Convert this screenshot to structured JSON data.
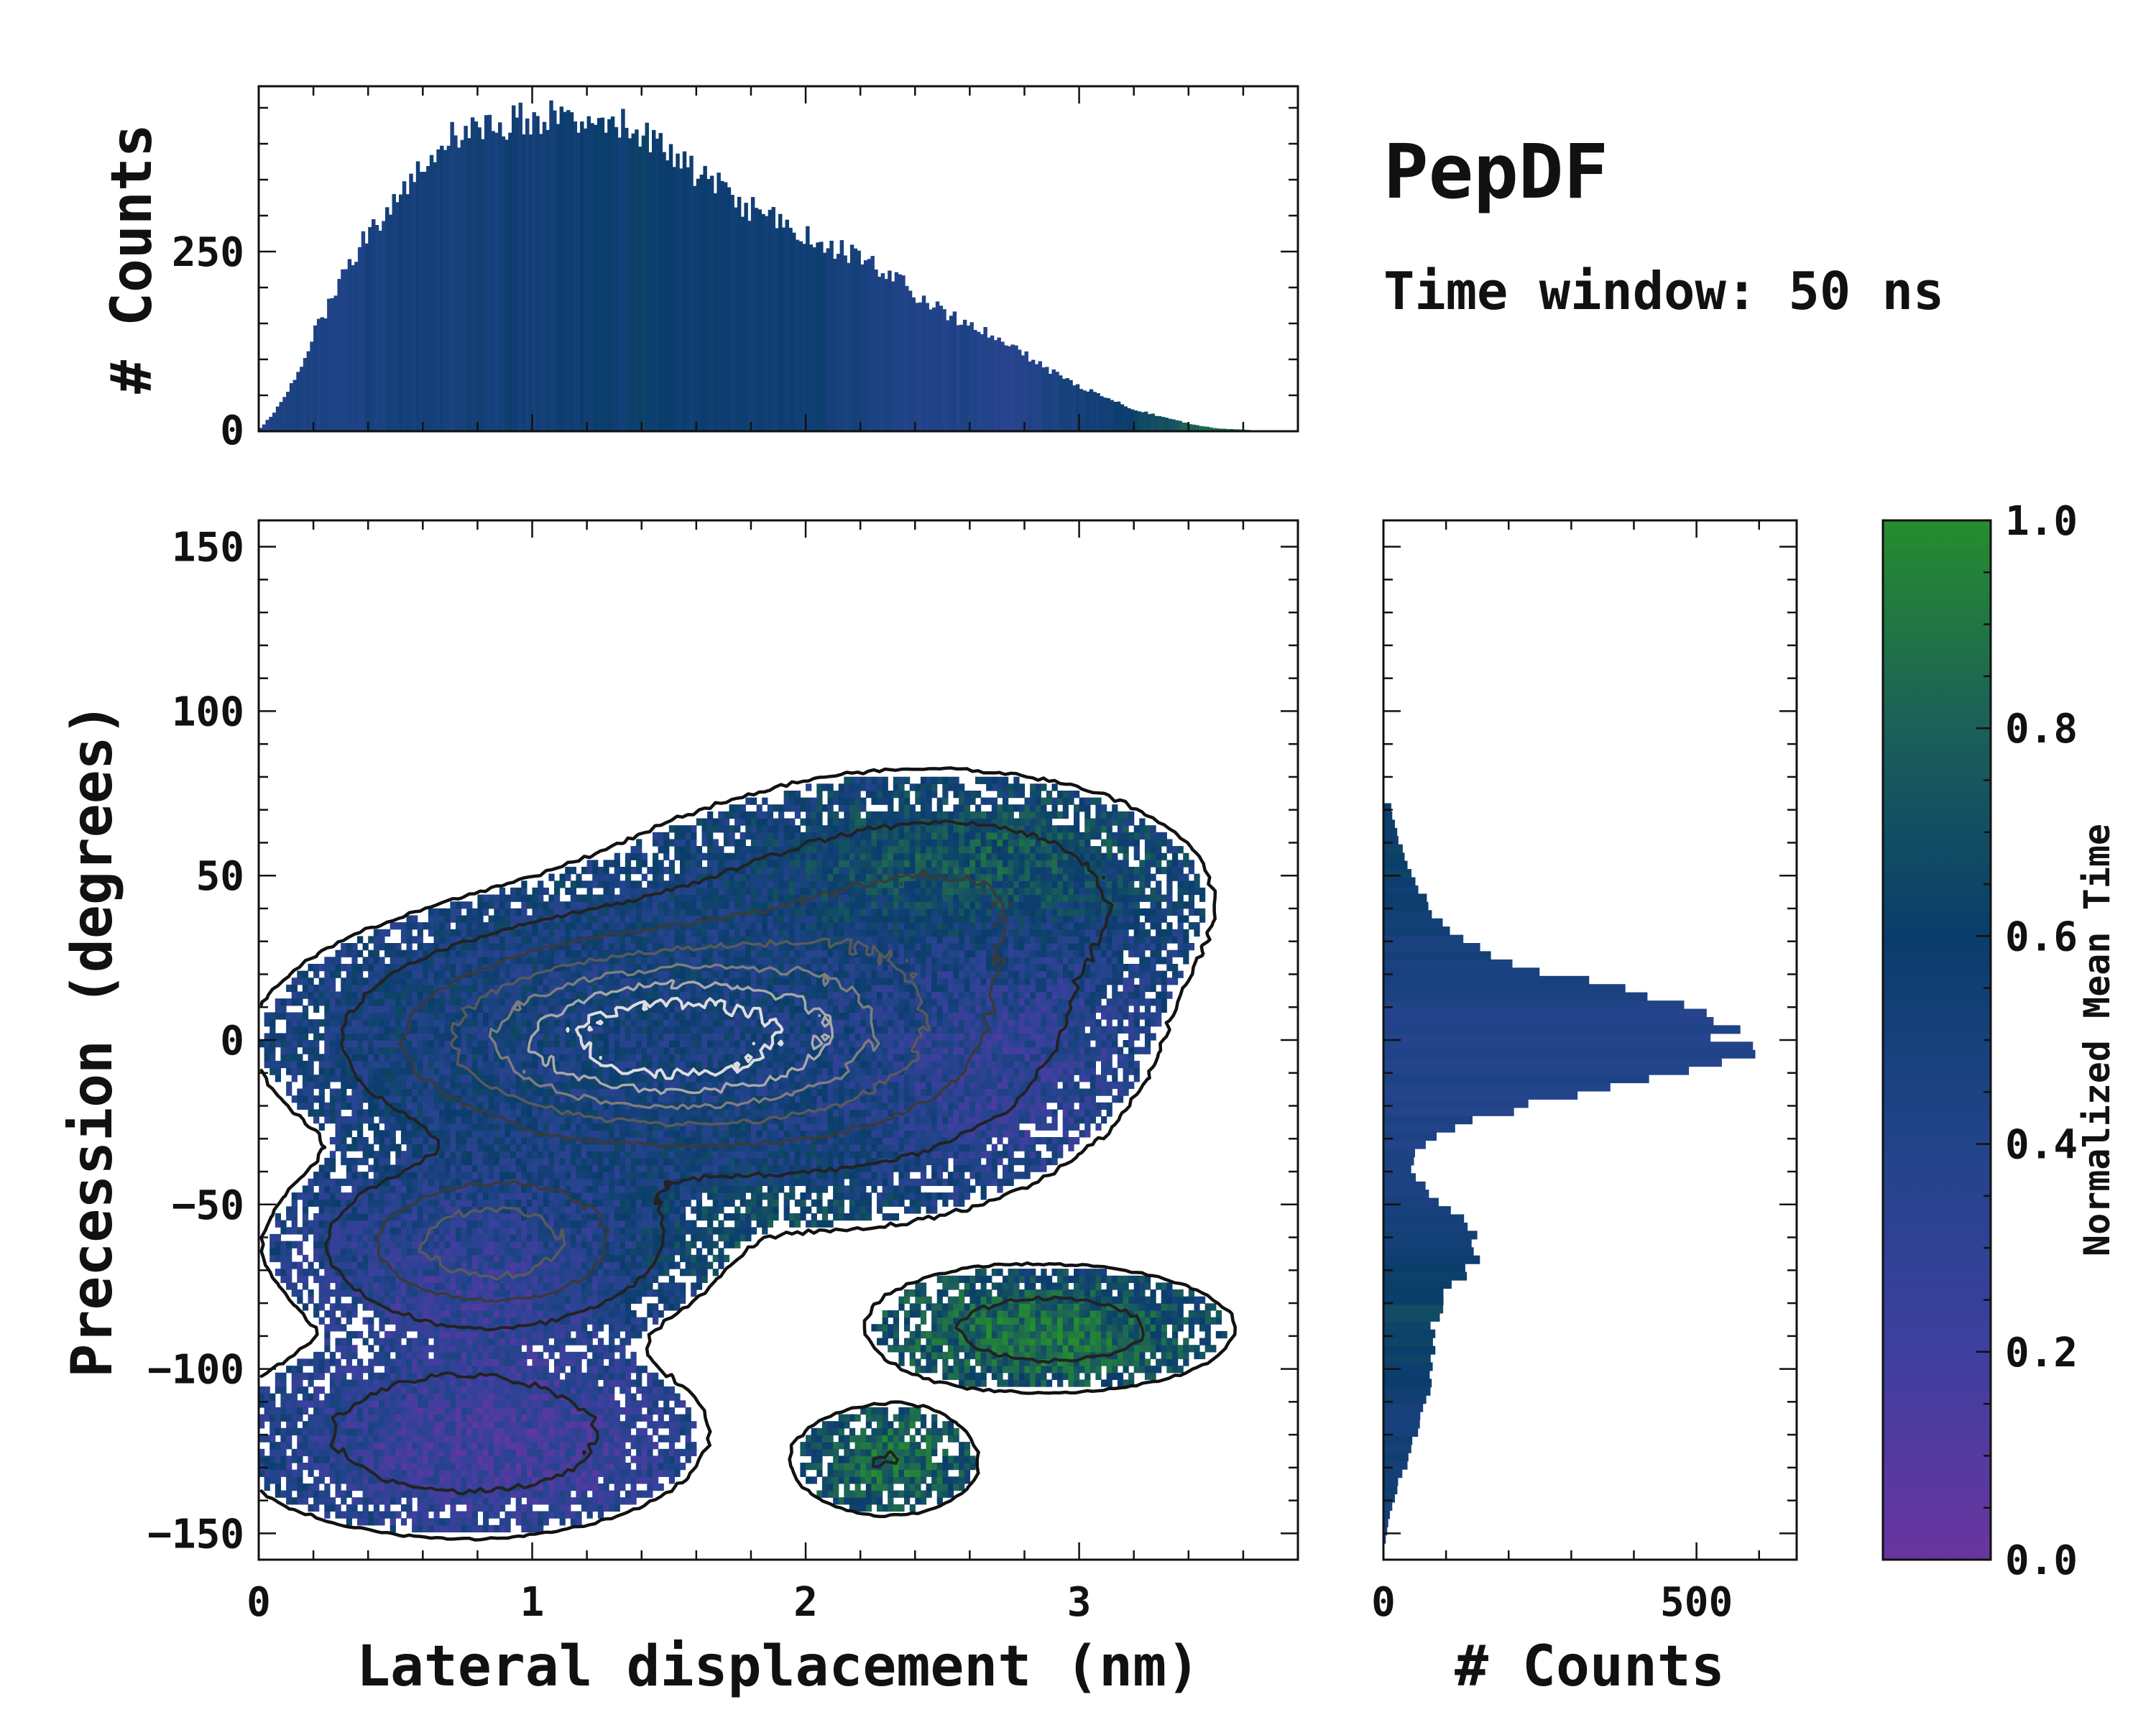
{
  "title": "PepDF",
  "subtitle": "Time window: 50 ns",
  "chart_data": [
    {
      "panel": "top-marginal-histogram",
      "type": "bar",
      "ylabel": "# Counts",
      "xlim": [
        0,
        3.8
      ],
      "ylim": [
        0,
        480
      ],
      "yticks": [
        0,
        250
      ],
      "color_by": "Normalized Mean Time",
      "bins": [
        [
          0.0,
          5,
          0.4
        ],
        [
          0.05,
          25,
          0.45
        ],
        [
          0.1,
          55,
          0.42
        ],
        [
          0.15,
          90,
          0.45
        ],
        [
          0.2,
          140,
          0.45
        ],
        [
          0.25,
          175,
          0.42
        ],
        [
          0.3,
          215,
          0.45
        ],
        [
          0.35,
          250,
          0.45
        ],
        [
          0.4,
          280,
          0.48
        ],
        [
          0.45,
          300,
          0.47
        ],
        [
          0.5,
          330,
          0.5
        ],
        [
          0.55,
          355,
          0.52
        ],
        [
          0.6,
          375,
          0.5
        ],
        [
          0.65,
          395,
          0.52
        ],
        [
          0.7,
          410,
          0.5
        ],
        [
          0.75,
          415,
          0.52
        ],
        [
          0.8,
          420,
          0.53
        ],
        [
          0.85,
          428,
          0.5
        ],
        [
          0.9,
          430,
          0.55
        ],
        [
          0.95,
          435,
          0.52
        ],
        [
          1.0,
          440,
          0.5
        ],
        [
          1.05,
          435,
          0.53
        ],
        [
          1.1,
          445,
          0.55
        ],
        [
          1.15,
          440,
          0.55
        ],
        [
          1.2,
          438,
          0.58
        ],
        [
          1.25,
          445,
          0.58
        ],
        [
          1.3,
          430,
          0.56
        ],
        [
          1.35,
          425,
          0.58
        ],
        [
          1.4,
          420,
          0.6
        ],
        [
          1.45,
          400,
          0.58
        ],
        [
          1.5,
          380,
          0.58
        ],
        [
          1.55,
          372,
          0.56
        ],
        [
          1.6,
          360,
          0.55
        ],
        [
          1.65,
          350,
          0.57
        ],
        [
          1.7,
          330,
          0.58
        ],
        [
          1.75,
          318,
          0.55
        ],
        [
          1.8,
          308,
          0.53
        ],
        [
          1.85,
          300,
          0.55
        ],
        [
          1.9,
          290,
          0.56
        ],
        [
          1.95,
          280,
          0.55
        ],
        [
          2.0,
          272,
          0.53
        ],
        [
          2.05,
          262,
          0.55
        ],
        [
          2.1,
          255,
          0.5
        ],
        [
          2.15,
          248,
          0.5
        ],
        [
          2.2,
          240,
          0.47
        ],
        [
          2.25,
          230,
          0.45
        ],
        [
          2.3,
          218,
          0.45
        ],
        [
          2.35,
          205,
          0.43
        ],
        [
          2.4,
          190,
          0.42
        ],
        [
          2.45,
          178,
          0.4
        ],
        [
          2.5,
          165,
          0.4
        ],
        [
          2.55,
          155,
          0.42
        ],
        [
          2.6,
          145,
          0.4
        ],
        [
          2.65,
          138,
          0.38
        ],
        [
          2.7,
          128,
          0.35
        ],
        [
          2.75,
          118,
          0.37
        ],
        [
          2.8,
          105,
          0.4
        ],
        [
          2.85,
          92,
          0.42
        ],
        [
          2.9,
          82,
          0.45
        ],
        [
          2.95,
          72,
          0.48
        ],
        [
          3.0,
          62,
          0.5
        ],
        [
          3.05,
          55,
          0.52
        ],
        [
          3.1,
          48,
          0.55
        ],
        [
          3.15,
          38,
          0.58
        ],
        [
          3.2,
          30,
          0.62
        ],
        [
          3.25,
          25,
          0.68
        ],
        [
          3.3,
          20,
          0.72
        ],
        [
          3.35,
          15,
          0.78
        ],
        [
          3.4,
          10,
          0.82
        ],
        [
          3.45,
          7,
          0.85
        ],
        [
          3.5,
          4,
          0.85
        ],
        [
          3.55,
          3,
          0.8
        ],
        [
          3.6,
          2,
          0.75
        ],
        [
          3.65,
          1,
          0.7
        ],
        [
          3.7,
          1,
          0.65
        ]
      ]
    },
    {
      "panel": "main-2d-histogram",
      "type": "heatmap",
      "xlabel": "Lateral displacement (nm)",
      "ylabel": "Precession (degrees)",
      "xlim": [
        0,
        3.8
      ],
      "ylim": [
        -158,
        158
      ],
      "xticks": [
        0,
        1,
        2,
        3
      ],
      "yticks": [
        -150,
        -100,
        -50,
        0,
        50,
        100,
        150
      ],
      "density_clusters": [
        {
          "x": 1.4,
          "y": 0,
          "sx": 0.55,
          "sy": 18,
          "w": 1.0
        },
        {
          "x": 0.85,
          "y": -62,
          "sx": 0.35,
          "sy": 14,
          "w": 0.6
        },
        {
          "x": 2.1,
          "y": 8,
          "sx": 0.55,
          "sy": 30,
          "w": 0.35
        },
        {
          "x": 0.75,
          "y": -120,
          "sx": 0.45,
          "sy": 16,
          "w": 0.25
        },
        {
          "x": 2.9,
          "y": -88,
          "sx": 0.35,
          "sy": 10,
          "w": 0.22
        },
        {
          "x": 2.3,
          "y": -128,
          "sx": 0.2,
          "sy": 10,
          "w": 0.14
        },
        {
          "x": 2.6,
          "y": 45,
          "sx": 0.45,
          "sy": 18,
          "w": 0.2
        }
      ],
      "time_regions": [
        {
          "x": 0.85,
          "y": -75,
          "sx": 0.55,
          "sy": 20,
          "t": -0.22
        },
        {
          "x": 0.9,
          "y": -125,
          "sx": 0.55,
          "sy": 20,
          "t": -0.3
        },
        {
          "x": 2.75,
          "y": -10,
          "sx": 0.4,
          "sy": 30,
          "t": -0.2
        },
        {
          "x": 2.9,
          "y": -90,
          "sx": 0.4,
          "sy": 14,
          "t": 0.38
        },
        {
          "x": 2.3,
          "y": -128,
          "sx": 0.25,
          "sy": 14,
          "t": 0.35
        },
        {
          "x": 1.9,
          "y": -70,
          "sx": 0.4,
          "sy": 18,
          "t": 0.28
        },
        {
          "x": 2.65,
          "y": 55,
          "sx": 0.5,
          "sy": 16,
          "t": 0.25
        }
      ]
    },
    {
      "panel": "right-marginal-histogram",
      "type": "bar",
      "orientation": "horizontal",
      "xlabel": "# Counts",
      "xlim": [
        0,
        660
      ],
      "ylim": [
        -158,
        158
      ],
      "xticks": [
        0,
        500
      ],
      "peaks": [
        {
          "y": 0,
          "sigma": 15,
          "amp": 560
        },
        {
          "y": -60,
          "sigma": 12,
          "amp": 130
        },
        {
          "y": -90,
          "sigma": 18,
          "amp": 70
        },
        {
          "y": -120,
          "sigma": 15,
          "amp": 35
        },
        {
          "y": 35,
          "sigma": 20,
          "amp": 60
        }
      ]
    },
    {
      "panel": "colorbar",
      "type": "colorbar",
      "label": "Normalized Mean Time",
      "range": [
        0,
        1
      ],
      "ticks": [
        "0.0",
        "0.2",
        "0.4",
        "0.6",
        "0.8",
        "1.0"
      ],
      "colors": [
        "#6a359f",
        "#3d3f9e",
        "#22448a",
        "#0a3d6b",
        "#1b5f5a",
        "#268d2e"
      ]
    }
  ]
}
